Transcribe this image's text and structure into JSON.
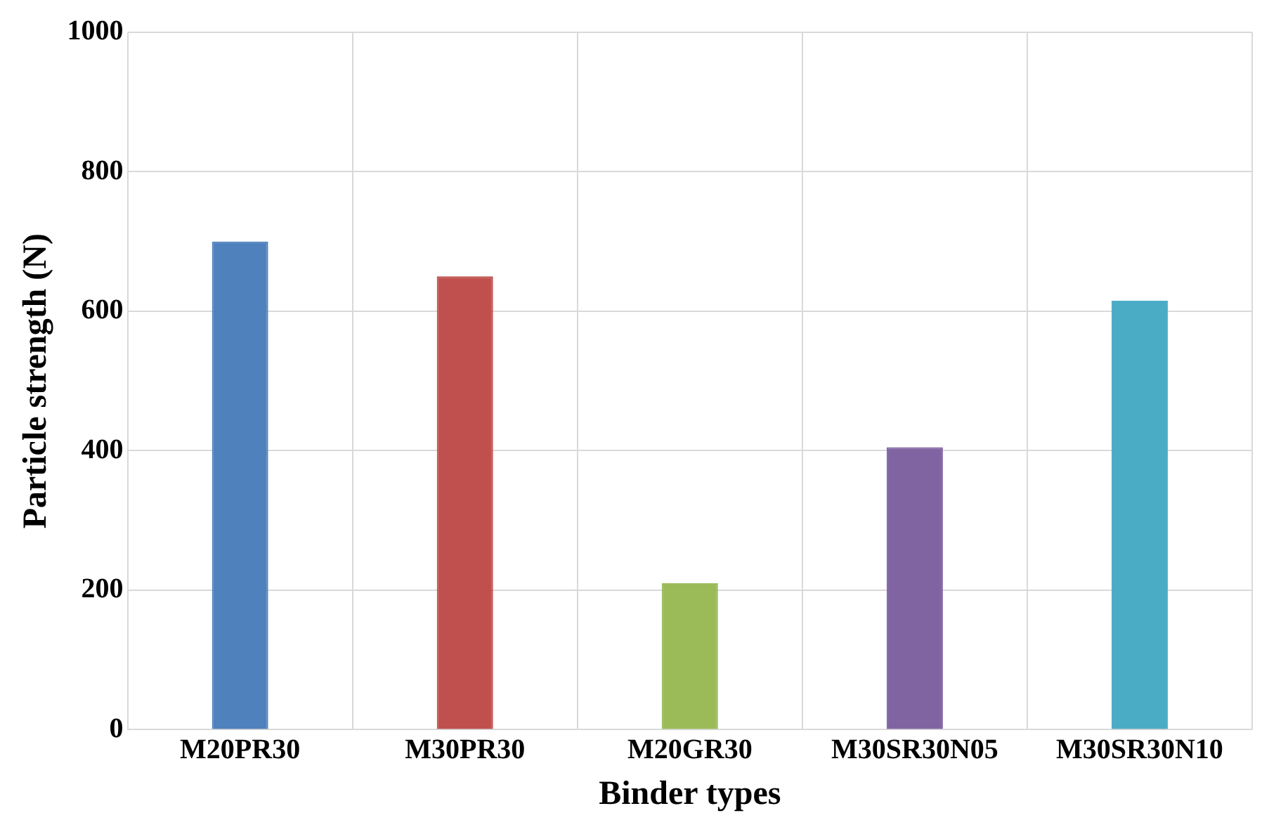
{
  "chart_data": {
    "type": "bar",
    "xlabel": "Binder types",
    "ylabel": "Particle strength (N)",
    "categories": [
      "M20PR30",
      "M30PR30",
      "M20GR30",
      "M30SR30N05",
      "M30SR30N10"
    ],
    "values": [
      700,
      650,
      210,
      405,
      615
    ],
    "colors": [
      "#4f81bd",
      "#c0504d",
      "#9bbb59",
      "#8064a2",
      "#4bacc6"
    ],
    "ylim": [
      0,
      1000
    ],
    "yticks": [
      0,
      200,
      400,
      600,
      800,
      1000
    ],
    "grid": true,
    "legend": false
  }
}
